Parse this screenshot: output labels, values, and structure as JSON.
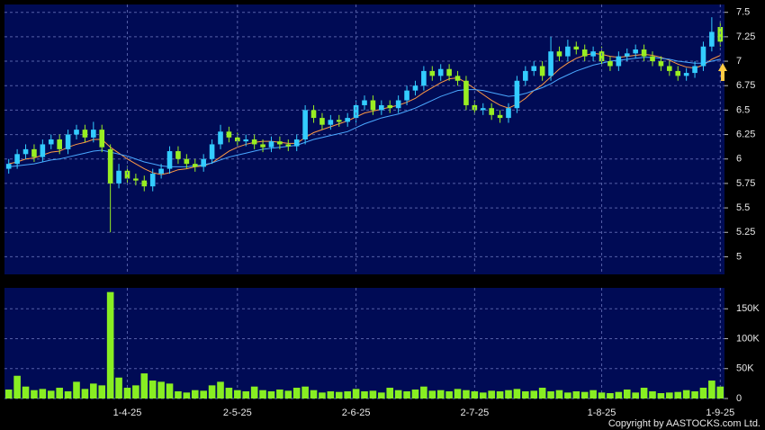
{
  "chart_data": [
    {
      "type": "candlestick",
      "open": [
        5.9,
        5.95,
        6.05,
        6.1,
        6.02,
        6.15,
        6.2,
        6.1,
        6.25,
        6.3,
        6.22,
        6.3,
        6.1,
        5.75,
        5.88,
        5.8,
        5.78,
        5.72,
        5.85,
        5.9,
        6.08,
        6.0,
        5.95,
        5.92,
        6.0,
        6.15,
        6.28,
        6.22,
        6.18,
        6.2,
        6.15,
        6.12,
        6.18,
        6.15,
        6.13,
        6.2,
        6.5,
        6.42,
        6.35,
        6.4,
        6.38,
        6.42,
        6.55,
        6.6,
        6.5,
        6.55,
        6.52,
        6.6,
        6.7,
        6.75,
        6.9,
        6.85,
        6.92,
        6.85,
        6.8,
        6.55,
        6.5,
        6.52,
        6.45,
        6.42,
        6.52,
        6.8,
        6.9,
        6.95,
        6.85,
        7.1,
        7.05,
        7.15,
        7.12,
        7.05,
        7.1,
        7.0,
        6.95,
        7.05,
        7.08,
        7.12,
        7.05,
        7.0,
        6.95,
        6.9,
        6.85,
        6.88,
        6.95,
        7.15,
        7.35
      ],
      "high": [
        6.0,
        6.1,
        6.15,
        6.15,
        6.2,
        6.25,
        6.25,
        6.3,
        6.35,
        6.35,
        6.38,
        6.35,
        6.15,
        5.95,
        5.93,
        5.85,
        5.83,
        5.9,
        5.95,
        6.13,
        6.13,
        6.05,
        6.0,
        6.05,
        6.2,
        6.35,
        6.33,
        6.27,
        6.25,
        6.25,
        6.2,
        6.23,
        6.23,
        6.2,
        6.25,
        6.55,
        6.55,
        6.47,
        6.45,
        6.45,
        6.47,
        6.6,
        6.65,
        6.65,
        6.6,
        6.6,
        6.65,
        6.75,
        6.8,
        6.95,
        6.95,
        6.97,
        6.97,
        6.9,
        6.85,
        6.6,
        6.57,
        6.57,
        6.5,
        6.57,
        6.85,
        6.95,
        7.0,
        7.0,
        7.25,
        7.15,
        7.22,
        7.2,
        7.17,
        7.15,
        7.15,
        7.05,
        7.1,
        7.13,
        7.17,
        7.17,
        7.1,
        7.05,
        7.0,
        6.95,
        6.93,
        7.0,
        7.2,
        7.45,
        7.4
      ],
      "low": [
        5.85,
        5.9,
        6.0,
        5.97,
        5.97,
        6.1,
        6.05,
        6.05,
        6.2,
        6.17,
        6.17,
        6.07,
        5.25,
        5.7,
        5.75,
        5.73,
        5.67,
        5.67,
        5.8,
        5.85,
        5.95,
        5.9,
        5.87,
        5.87,
        5.95,
        6.1,
        6.17,
        6.13,
        6.13,
        6.1,
        6.07,
        6.07,
        6.1,
        6.08,
        6.08,
        6.15,
        6.37,
        6.3,
        6.3,
        6.33,
        6.33,
        6.37,
        6.5,
        6.45,
        6.45,
        6.47,
        6.47,
        6.55,
        6.65,
        6.7,
        6.8,
        6.8,
        6.8,
        6.75,
        6.5,
        6.45,
        6.45,
        6.4,
        6.37,
        6.37,
        6.47,
        6.75,
        6.85,
        6.8,
        6.8,
        7.0,
        7.0,
        7.07,
        7.0,
        7.0,
        6.95,
        6.9,
        6.9,
        7.0,
        7.03,
        7.0,
        6.95,
        6.9,
        6.85,
        6.8,
        6.8,
        6.83,
        6.9,
        7.1,
        7.15
      ],
      "close": [
        5.95,
        6.05,
        6.1,
        6.02,
        6.15,
        6.2,
        6.1,
        6.25,
        6.3,
        6.22,
        6.3,
        6.12,
        5.75,
        5.88,
        5.8,
        5.78,
        5.72,
        5.85,
        5.9,
        6.08,
        6.0,
        5.95,
        5.92,
        6.0,
        6.15,
        6.28,
        6.22,
        6.18,
        6.2,
        6.15,
        6.12,
        6.18,
        6.15,
        6.13,
        6.2,
        6.5,
        6.42,
        6.35,
        6.4,
        6.38,
        6.42,
        6.55,
        6.6,
        6.5,
        6.55,
        6.52,
        6.6,
        6.7,
        6.75,
        6.9,
        6.85,
        6.92,
        6.85,
        6.8,
        6.55,
        6.5,
        6.52,
        6.45,
        6.42,
        6.52,
        6.8,
        6.9,
        6.95,
        6.85,
        7.1,
        7.05,
        7.15,
        7.12,
        7.05,
        7.1,
        7.0,
        6.95,
        7.05,
        7.08,
        7.12,
        7.05,
        7.0,
        6.95,
        6.9,
        6.85,
        6.88,
        6.95,
        7.15,
        7.3,
        7.2
      ],
      "up_color": "#33ccff",
      "down_color": "#99ee22",
      "lines": [
        {
          "color": "#ff9944",
          "values": [
            5.95,
            5.97,
            6.0,
            6.01,
            6.04,
            6.07,
            6.08,
            6.12,
            6.15,
            6.17,
            6.2,
            6.2,
            6.12,
            6.06,
            6.0,
            5.95,
            5.9,
            5.86,
            5.84,
            5.86,
            5.89,
            5.9,
            5.92,
            5.93,
            5.96,
            6.02,
            6.08,
            6.12,
            6.15,
            6.17,
            6.18,
            6.18,
            6.17,
            6.16,
            6.16,
            6.22,
            6.27,
            6.3,
            6.33,
            6.36,
            6.39,
            6.43,
            6.47,
            6.49,
            6.51,
            6.53,
            6.55,
            6.58,
            6.62,
            6.68,
            6.73,
            6.78,
            6.82,
            6.83,
            6.78,
            6.72,
            6.66,
            6.6,
            6.55,
            6.52,
            6.56,
            6.62,
            6.7,
            6.76,
            6.84,
            6.92,
            6.98,
            7.03,
            7.06,
            7.08,
            7.07,
            7.05,
            7.04,
            7.05,
            7.06,
            7.07,
            7.06,
            7.04,
            7.01,
            6.97,
            6.94,
            6.93,
            6.96,
            7.02,
            7.06
          ]
        },
        {
          "color": "#4aa8ff",
          "values": [
            5.92,
            5.93,
            5.94,
            5.95,
            5.97,
            5.99,
            6.0,
            6.02,
            6.04,
            6.06,
            6.08,
            6.09,
            6.07,
            6.05,
            6.03,
            6.0,
            5.97,
            5.95,
            5.93,
            5.92,
            5.92,
            5.92,
            5.93,
            5.94,
            5.96,
            5.99,
            6.02,
            6.04,
            6.06,
            6.08,
            6.1,
            6.11,
            6.12,
            6.13,
            6.14,
            6.17,
            6.2,
            6.22,
            6.24,
            6.26,
            6.28,
            6.32,
            6.36,
            6.39,
            6.42,
            6.44,
            6.46,
            6.49,
            6.52,
            6.56,
            6.6,
            6.64,
            6.67,
            6.7,
            6.71,
            6.71,
            6.7,
            6.68,
            6.66,
            6.64,
            6.65,
            6.67,
            6.7,
            6.73,
            6.77,
            6.82,
            6.86,
            6.9,
            6.93,
            6.96,
            6.98,
            7.0,
            7.01,
            7.02,
            7.03,
            7.04,
            7.04,
            7.03,
            7.02,
            7.0,
            6.99,
            6.98,
            6.98,
            7.0,
            7.02
          ]
        }
      ],
      "ylim": [
        4.82,
        7.58
      ],
      "yticks": [
        5,
        5.25,
        5.5,
        5.75,
        6,
        6.25,
        6.5,
        6.75,
        7,
        7.25,
        7.5
      ],
      "grid": true
    },
    {
      "type": "bar",
      "categories": [
        null,
        null,
        null,
        null,
        null,
        null,
        null,
        null,
        null,
        null,
        null,
        null,
        null,
        null,
        "1-4-25",
        null,
        null,
        null,
        null,
        null,
        null,
        null,
        null,
        null,
        null,
        null,
        null,
        "2-5-25",
        null,
        null,
        null,
        null,
        null,
        null,
        null,
        null,
        null,
        null,
        null,
        null,
        null,
        "2-6-25",
        null,
        null,
        null,
        null,
        null,
        null,
        null,
        null,
        null,
        null,
        null,
        null,
        null,
        "2-7-25",
        null,
        null,
        null,
        null,
        null,
        null,
        null,
        null,
        null,
        null,
        null,
        null,
        null,
        null,
        "1-8-25",
        null,
        null,
        null,
        null,
        null,
        null,
        null,
        null,
        null,
        null,
        null,
        null,
        null,
        "1-9-25"
      ],
      "values": [
        15000,
        38000,
        20000,
        14000,
        16000,
        13000,
        18000,
        12000,
        28000,
        16000,
        25000,
        22000,
        178000,
        35000,
        18000,
        22000,
        42000,
        30000,
        28000,
        25000,
        12000,
        10000,
        14000,
        13000,
        22000,
        28000,
        18000,
        14000,
        12000,
        20000,
        14000,
        12000,
        15000,
        13000,
        18000,
        20000,
        14000,
        10000,
        12000,
        11000,
        12000,
        16000,
        12000,
        13000,
        10000,
        18000,
        14000,
        12000,
        15000,
        20000,
        13000,
        14000,
        12000,
        16000,
        14000,
        12000,
        10000,
        13000,
        12000,
        14000,
        16000,
        12000,
        13000,
        18000,
        12000,
        14000,
        10000,
        12000,
        11000,
        14000,
        10000,
        9000,
        11000,
        15000,
        10000,
        18000,
        12000,
        9000,
        10000,
        11000,
        14000,
        12000,
        18000,
        30000,
        20000
      ],
      "color": "#88ee22",
      "ylim": [
        0,
        185000
      ],
      "yticks": [
        0,
        {
          "value": 50000,
          "label": "50K"
        },
        {
          "value": 100000,
          "label": "100K"
        },
        {
          "value": 150000,
          "label": "150K"
        }
      ],
      "grid": true
    }
  ],
  "copyright": "Copyright by AASTOCKS.com Ltd."
}
